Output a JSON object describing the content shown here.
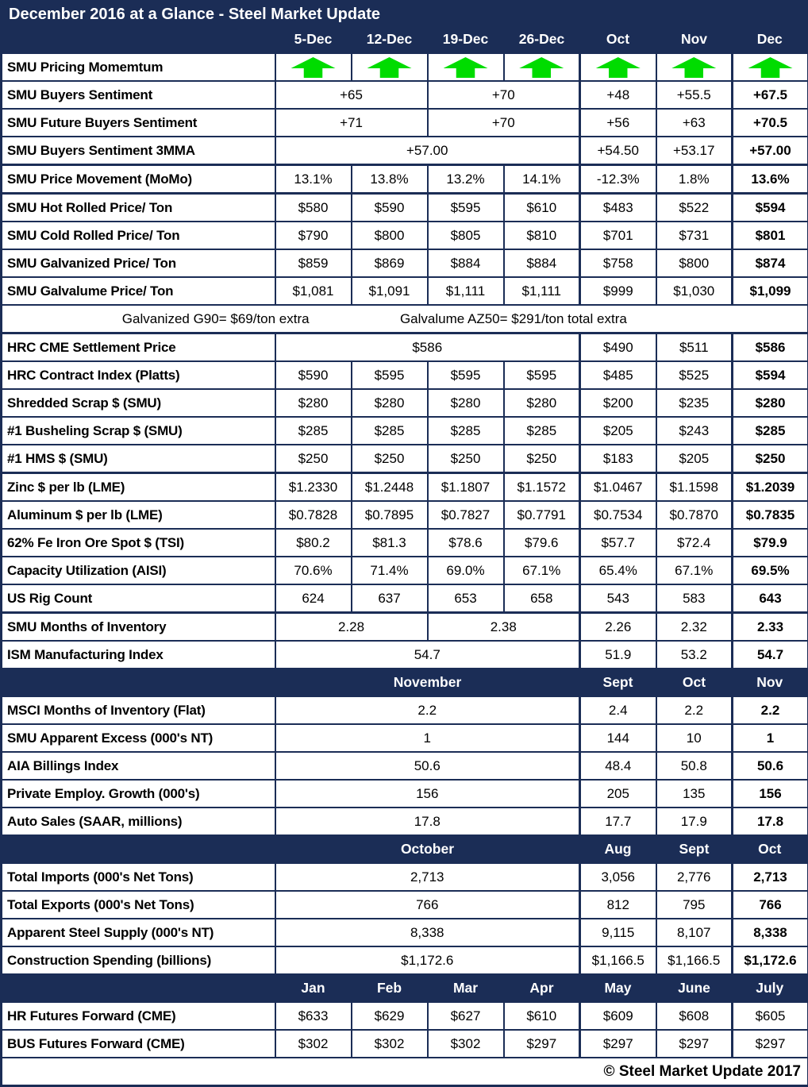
{
  "title": "December 2016 at a Glance - Steel Market Update",
  "footer": "© Steel Market Update 2017",
  "colors": {
    "navy": "#1b2d56",
    "arrow_green": "#00dc00",
    "body_bg": "#ffffff",
    "text": "#000000",
    "header_text": "#ffffff"
  },
  "columns": [
    "",
    "5-Dec",
    "12-Dec",
    "19-Dec",
    "26-Dec",
    "Oct",
    "Nov",
    "Dec"
  ],
  "table": {
    "rows": [
      {
        "type": "arrows",
        "label": "SMU Pricing Momemtum",
        "cells": [
          {
            "icon": "up-arrow"
          },
          {
            "icon": "up-arrow"
          },
          {
            "icon": "up-arrow"
          },
          {
            "icon": "up-arrow"
          },
          {
            "icon": "up-arrow"
          },
          {
            "icon": "up-arrow"
          },
          {
            "icon": "up-arrow"
          }
        ]
      },
      {
        "label": "SMU Buyers Sentiment",
        "cells": [
          {
            "text": "+65",
            "span": 2
          },
          {
            "text": "+70",
            "span": 2
          },
          {
            "text": "+48"
          },
          {
            "text": "+55.5"
          },
          {
            "text": "+67.5",
            "bold": 1
          }
        ]
      },
      {
        "label": "SMU Future Buyers Sentiment",
        "cells": [
          {
            "text": "+71",
            "span": 2
          },
          {
            "text": "+70",
            "span": 2
          },
          {
            "text": "+56"
          },
          {
            "text": "+63"
          },
          {
            "text": "+70.5",
            "bold": 1
          }
        ]
      },
      {
        "label": "SMU Buyers Sentiment 3MMA",
        "cells": [
          {
            "text": "+57.00",
            "span": 4
          },
          {
            "text": "+54.50"
          },
          {
            "text": "+53.17"
          },
          {
            "text": "+57.00",
            "bold": 1
          }
        ]
      },
      {
        "label": "SMU Price Movement (MoMo)",
        "sep": 1,
        "cells": [
          {
            "text": "13.1%"
          },
          {
            "text": "13.8%"
          },
          {
            "text": "13.2%"
          },
          {
            "text": "14.1%"
          },
          {
            "text": "-12.3%"
          },
          {
            "text": "1.8%"
          },
          {
            "text": "13.6%",
            "bold": 1
          }
        ]
      },
      {
        "label": "SMU Hot Rolled Price/ Ton",
        "sep": 1,
        "cells": [
          {
            "text": "$580"
          },
          {
            "text": "$590"
          },
          {
            "text": "$595"
          },
          {
            "text": "$610"
          },
          {
            "text": "$483"
          },
          {
            "text": "$522"
          },
          {
            "text": "$594",
            "bold": 1
          }
        ]
      },
      {
        "label": "SMU Cold Rolled Price/ Ton",
        "cells": [
          {
            "text": "$790"
          },
          {
            "text": "$800"
          },
          {
            "text": "$805"
          },
          {
            "text": "$810"
          },
          {
            "text": "$701"
          },
          {
            "text": "$731"
          },
          {
            "text": "$801",
            "bold": 1
          }
        ]
      },
      {
        "label": "SMU Galvanized Price/ Ton",
        "cells": [
          {
            "text": "$859"
          },
          {
            "text": "$869"
          },
          {
            "text": "$884"
          },
          {
            "text": "$884"
          },
          {
            "text": "$758"
          },
          {
            "text": "$800"
          },
          {
            "text": "$874",
            "bold": 1
          }
        ]
      },
      {
        "label": "SMU Galvalume Price/ Ton",
        "cells": [
          {
            "text": "$1,081"
          },
          {
            "text": "$1,091"
          },
          {
            "text": "$1,111"
          },
          {
            "text": "$1,111"
          },
          {
            "text": "$999"
          },
          {
            "text": "$1,030"
          },
          {
            "text": "$1,099",
            "bold": 1
          }
        ]
      },
      {
        "type": "note",
        "texts": [
          "Galvanized G90= $69/ton extra",
          "Galvalume AZ50= $291/ton total extra"
        ]
      },
      {
        "label": "HRC CME Settlement Price",
        "sep": 1,
        "cells": [
          {
            "text": "$586",
            "span": 4
          },
          {
            "text": "$490"
          },
          {
            "text": "$511"
          },
          {
            "text": "$586",
            "bold": 1
          }
        ]
      },
      {
        "label": "HRC Contract Index (Platts)",
        "cells": [
          {
            "text": "$590"
          },
          {
            "text": "$595"
          },
          {
            "text": "$595"
          },
          {
            "text": "$595"
          },
          {
            "text": "$485"
          },
          {
            "text": "$525"
          },
          {
            "text": "$594",
            "bold": 1
          }
        ]
      },
      {
        "label": "Shredded Scrap $ (SMU)",
        "cells": [
          {
            "text": "$280"
          },
          {
            "text": "$280"
          },
          {
            "text": "$280"
          },
          {
            "text": "$280"
          },
          {
            "text": "$200"
          },
          {
            "text": "$235"
          },
          {
            "text": "$280",
            "bold": 1
          }
        ]
      },
      {
        "label": "#1 Busheling Scrap $ (SMU)",
        "cells": [
          {
            "text": "$285"
          },
          {
            "text": "$285"
          },
          {
            "text": "$285"
          },
          {
            "text": "$285"
          },
          {
            "text": "$205"
          },
          {
            "text": "$243"
          },
          {
            "text": "$285",
            "bold": 1
          }
        ]
      },
      {
        "label": "#1 HMS $ (SMU)",
        "cells": [
          {
            "text": "$250"
          },
          {
            "text": "$250"
          },
          {
            "text": "$250"
          },
          {
            "text": "$250"
          },
          {
            "text": "$183"
          },
          {
            "text": "$205"
          },
          {
            "text": "$250",
            "bold": 1
          }
        ]
      },
      {
        "label": "Zinc $ per lb (LME)",
        "sep": 1,
        "cells": [
          {
            "text": "$1.2330"
          },
          {
            "text": "$1.2448"
          },
          {
            "text": "$1.1807"
          },
          {
            "text": "$1.1572"
          },
          {
            "text": "$1.0467"
          },
          {
            "text": "$1.1598"
          },
          {
            "text": "$1.2039",
            "bold": 1
          }
        ]
      },
      {
        "label": "Aluminum $ per lb (LME)",
        "cells": [
          {
            "text": "$0.7828"
          },
          {
            "text": "$0.7895"
          },
          {
            "text": "$0.7827"
          },
          {
            "text": "$0.7791"
          },
          {
            "text": "$0.7534"
          },
          {
            "text": "$0.7870"
          },
          {
            "text": "$0.7835",
            "bold": 1
          }
        ]
      },
      {
        "label": "62% Fe Iron Ore Spot $ (TSI)",
        "cells": [
          {
            "text": "$80.2"
          },
          {
            "text": "$81.3"
          },
          {
            "text": "$78.6"
          },
          {
            "text": "$79.6"
          },
          {
            "text": "$57.7"
          },
          {
            "text": "$72.4"
          },
          {
            "text": "$79.9",
            "bold": 1
          }
        ]
      },
      {
        "label": "Capacity Utilization (AISI)",
        "cells": [
          {
            "text": "70.6%"
          },
          {
            "text": "71.4%"
          },
          {
            "text": "69.0%"
          },
          {
            "text": "67.1%"
          },
          {
            "text": "65.4%"
          },
          {
            "text": "67.1%"
          },
          {
            "text": "69.5%",
            "bold": 1
          }
        ]
      },
      {
        "label": "US Rig Count",
        "cells": [
          {
            "text": "624"
          },
          {
            "text": "637"
          },
          {
            "text": "653"
          },
          {
            "text": "658"
          },
          {
            "text": "543"
          },
          {
            "text": "583"
          },
          {
            "text": "643",
            "bold": 1
          }
        ]
      },
      {
        "label": "SMU Months of Inventory",
        "sep": 1,
        "cells": [
          {
            "text": "2.28",
            "span": 2
          },
          {
            "text": "2.38",
            "span": 2
          },
          {
            "text": "2.26"
          },
          {
            "text": "2.32"
          },
          {
            "text": "2.33",
            "bold": 1
          }
        ]
      },
      {
        "label": "ISM Manufacturing Index",
        "cells": [
          {
            "text": "54.7",
            "span": 4
          },
          {
            "text": "51.9"
          },
          {
            "text": "53.2"
          },
          {
            "text": "54.7",
            "bold": 1
          }
        ]
      },
      {
        "type": "section",
        "label": "",
        "cells": [
          {
            "text": "November",
            "span": 4
          },
          {
            "text": "Sept"
          },
          {
            "text": "Oct"
          },
          {
            "text": "Nov"
          }
        ]
      },
      {
        "label": "MSCI Months of Inventory (Flat)",
        "cells": [
          {
            "text": "2.2",
            "span": 4
          },
          {
            "text": "2.4"
          },
          {
            "text": "2.2"
          },
          {
            "text": "2.2",
            "bold": 1
          }
        ]
      },
      {
        "label": "SMU Apparent Excess (000's NT)",
        "cells": [
          {
            "text": "1",
            "span": 4
          },
          {
            "text": "144"
          },
          {
            "text": "10"
          },
          {
            "text": "1",
            "bold": 1
          }
        ]
      },
      {
        "label": "AIA Billings Index",
        "cells": [
          {
            "text": "50.6",
            "span": 4
          },
          {
            "text": "48.4"
          },
          {
            "text": "50.8"
          },
          {
            "text": "50.6",
            "bold": 1
          }
        ]
      },
      {
        "label": "Private Employ. Growth (000's)",
        "cells": [
          {
            "text": "156",
            "span": 4
          },
          {
            "text": "205"
          },
          {
            "text": "135"
          },
          {
            "text": "156",
            "bold": 1
          }
        ]
      },
      {
        "label": "Auto Sales (SAAR, millions)",
        "cells": [
          {
            "text": "17.8",
            "span": 4
          },
          {
            "text": "17.7"
          },
          {
            "text": "17.9"
          },
          {
            "text": "17.8",
            "bold": 1
          }
        ]
      },
      {
        "type": "section",
        "label": "",
        "cells": [
          {
            "text": "October",
            "span": 4
          },
          {
            "text": "Aug"
          },
          {
            "text": "Sept"
          },
          {
            "text": "Oct"
          }
        ]
      },
      {
        "label": "Total Imports (000's Net Tons)",
        "cells": [
          {
            "text": "2,713",
            "span": 4
          },
          {
            "text": "3,056"
          },
          {
            "text": "2,776"
          },
          {
            "text": "2,713",
            "bold": 1
          }
        ]
      },
      {
        "label": "Total Exports (000's Net Tons)",
        "cells": [
          {
            "text": "766",
            "span": 4
          },
          {
            "text": "812"
          },
          {
            "text": "795"
          },
          {
            "text": "766",
            "bold": 1
          }
        ]
      },
      {
        "label": "Apparent Steel Supply (000's NT)",
        "cells": [
          {
            "text": "8,338",
            "span": 4
          },
          {
            "text": "9,115"
          },
          {
            "text": "8,107"
          },
          {
            "text": "8,338",
            "bold": 1
          }
        ]
      },
      {
        "label": "Construction Spending (billions)",
        "cells": [
          {
            "text": "$1,172.6",
            "span": 4
          },
          {
            "text": "$1,166.5"
          },
          {
            "text": "$1,166.5"
          },
          {
            "text": "$1,172.6",
            "bold": 1
          }
        ]
      },
      {
        "type": "section",
        "label": "",
        "cells": [
          {
            "text": "Jan"
          },
          {
            "text": "Feb"
          },
          {
            "text": "Mar"
          },
          {
            "text": "Apr"
          },
          {
            "text": "May"
          },
          {
            "text": "June"
          },
          {
            "text": "July"
          }
        ]
      },
      {
        "label": "HR Futures Forward (CME)",
        "cells": [
          {
            "text": "$633"
          },
          {
            "text": "$629"
          },
          {
            "text": "$627"
          },
          {
            "text": "$610"
          },
          {
            "text": "$609"
          },
          {
            "text": "$608"
          },
          {
            "text": "$605"
          }
        ]
      },
      {
        "label": "BUS Futures Forward (CME)",
        "cells": [
          {
            "text": "$302"
          },
          {
            "text": "$302"
          },
          {
            "text": "$302"
          },
          {
            "text": "$297"
          },
          {
            "text": "$297"
          },
          {
            "text": "$297"
          },
          {
            "text": "$297"
          }
        ]
      }
    ]
  }
}
